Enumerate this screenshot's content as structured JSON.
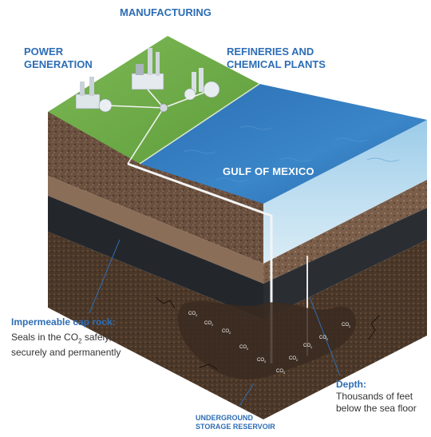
{
  "labels": {
    "manufacturing": "MANUFACTURING",
    "power_generation_1": "POWER",
    "power_generation_2": "GENERATION",
    "refineries_1": "REFINERIES AND",
    "refineries_2": "CHEMICAL PLANTS",
    "gulf": "GULF OF MEXICO",
    "cap_rock_title": "Impermeable cap rock:",
    "cap_rock_text_1a": "Seals in the CO",
    "cap_rock_text_1sub": "2",
    "cap_rock_text_1b": " safely,",
    "cap_rock_text_2": "securely and permanently",
    "depth_title": "Depth:",
    "depth_text_1": "Thousands of feet",
    "depth_text_2": "below the sea floor",
    "reservoir_1": "UNDERGROUND",
    "reservoir_2": "STORAGE RESERVOIR",
    "co2_main": "CO",
    "co2_sub": "2"
  },
  "colors": {
    "accent": "#2d6db5",
    "grass": "#6fae4a",
    "water": "#2f74b8",
    "soil": "#6b5040",
    "dark_rock": "#25292e",
    "reservoir": "#4a3628"
  }
}
